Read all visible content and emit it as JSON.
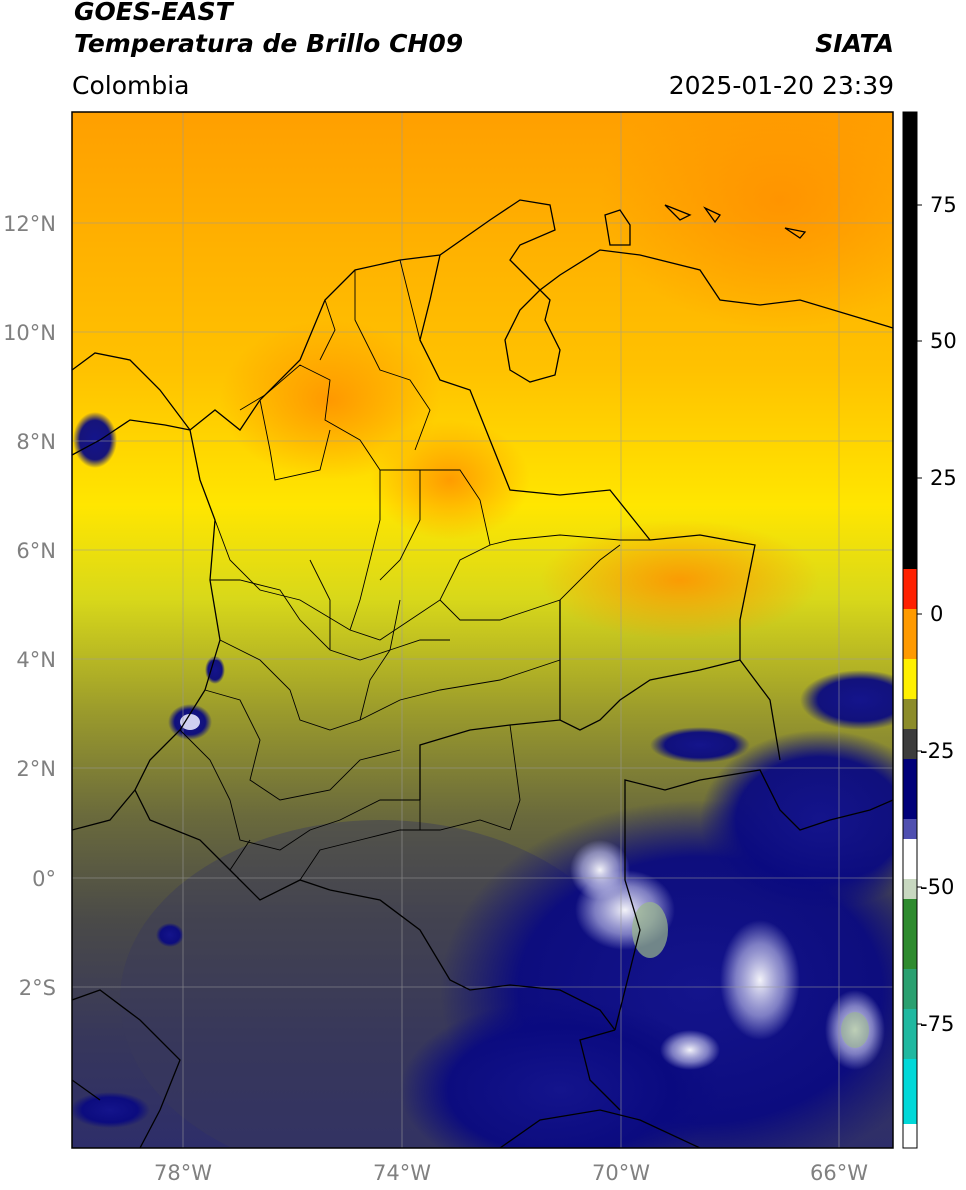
{
  "header": {
    "satellite": "GOES-EAST",
    "product": "Temperatura de Brillo CH09",
    "brand": "SIATA",
    "region": "Colombia",
    "timestamp": "2025-01-20 23:39"
  },
  "map": {
    "lon_range": [
      -80,
      -65
    ],
    "lat_range": [
      -5,
      14
    ],
    "lat_ticks": [
      "12°N",
      "10°N",
      "8°N",
      "6°N",
      "4°N",
      "2°N",
      "0°",
      "2°S"
    ],
    "lon_ticks": [
      "78°W",
      "74°W",
      "70°W",
      "66°W"
    ]
  },
  "colorbar": {
    "ticks": [
      "75",
      "50",
      "25",
      "0",
      "-25",
      "-50",
      "-75"
    ],
    "colors": {
      "black": "#000000",
      "red": "#ff2000",
      "orange": "#ff9a00",
      "yellow": "#fff000",
      "olive": "#8c8c2a",
      "gray": "#3c3c3c",
      "navy": "#00007a",
      "white": "#ffffff",
      "green": "#2e8b2e",
      "cyan": "#00d8d8"
    }
  }
}
